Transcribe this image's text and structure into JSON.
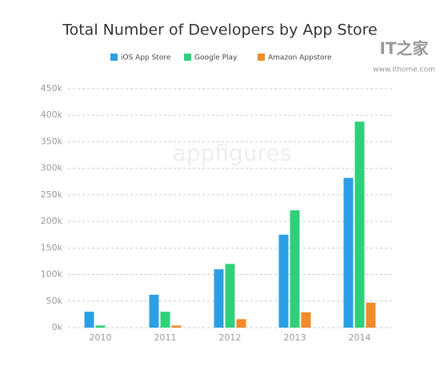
{
  "chart_data": {
    "type": "bar",
    "title": "Total Number of Developers by App Store",
    "categories": [
      "2010",
      "2011",
      "2012",
      "2013",
      "2014"
    ],
    "series": [
      {
        "name": "iOS App Store",
        "color": "#2b9fe6",
        "values": [
          30,
          62,
          110,
          175,
          282
        ]
      },
      {
        "name": "Google Play",
        "color": "#2fd07a",
        "values": [
          4,
          30,
          120,
          221,
          388
        ]
      },
      {
        "name": "Amazon Appstore",
        "color": "#f08a2a",
        "values": [
          0,
          4,
          16,
          29,
          47
        ]
      }
    ],
    "ylim": [
      0,
      450
    ],
    "yticks": [
      {
        "value": 0,
        "label": "0k"
      },
      {
        "value": 50,
        "label": "50k"
      },
      {
        "value": 100,
        "label": "100k"
      },
      {
        "value": 150,
        "label": "150k"
      },
      {
        "value": 200,
        "label": "200k"
      },
      {
        "value": 250,
        "label": "250k"
      },
      {
        "value": 300,
        "label": "300k"
      },
      {
        "value": 350,
        "label": "350k"
      },
      {
        "value": 400,
        "label": "400k"
      },
      {
        "value": 450,
        "label": "450k"
      }
    ],
    "grid": true,
    "watermark": "appfigures",
    "logo": "IT之家",
    "site": "www.ithome.com"
  }
}
